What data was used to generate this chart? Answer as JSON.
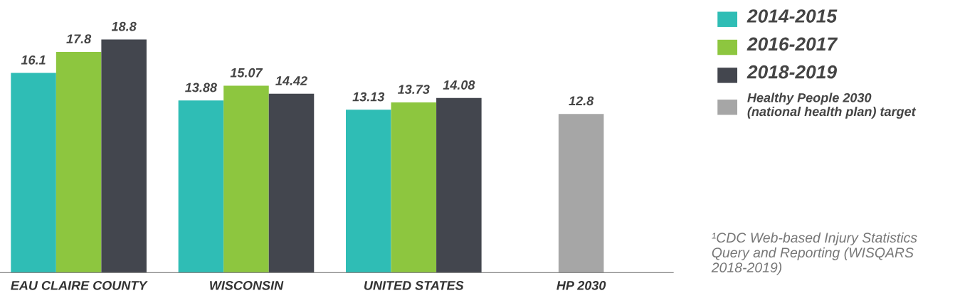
{
  "chart_data": {
    "type": "bar",
    "categories": [
      "EAU CLAIRE COUNTY",
      "WISCONSIN",
      "UNITED STATES",
      "HP 2030"
    ],
    "series": [
      {
        "name": "2014-2015",
        "color": "#2fbdb5",
        "values": [
          16.1,
          13.88,
          13.13,
          null
        ]
      },
      {
        "name": "2016-2017",
        "color": "#8dc63f",
        "values": [
          17.8,
          15.07,
          13.73,
          null
        ]
      },
      {
        "name": "2018-2019",
        "color": "#43464e",
        "values": [
          18.8,
          14.42,
          14.08,
          null
        ]
      },
      {
        "name": "Healthy People 2030\n(national health plan) target",
        "color": "#a6a6a6",
        "values": [
          null,
          null,
          null,
          12.8
        ]
      }
    ],
    "data_labels": true,
    "legend": "right",
    "grid": false,
    "annotations": [
      "¹CDC Web-based Injury Statistics Query and Reporting (WISQARS 2018-2019)"
    ]
  }
}
